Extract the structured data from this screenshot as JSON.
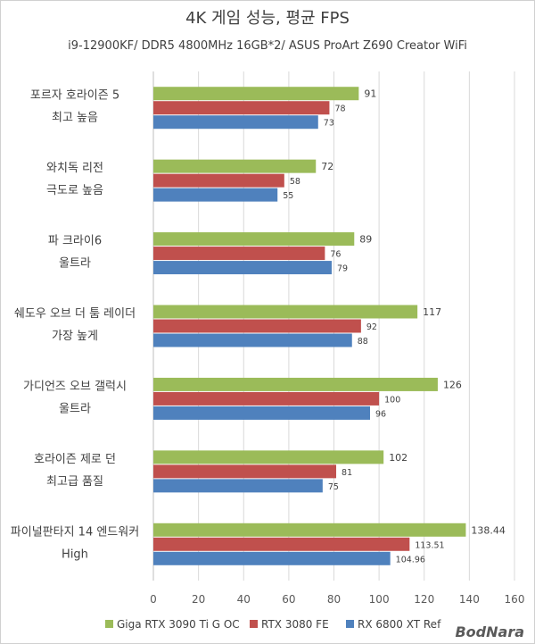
{
  "watermark": "BodNara",
  "chart_data": {
    "type": "bar",
    "orientation": "horizontal",
    "title": "4K 게임 성능,  평균 FPS",
    "subtitle": "i9-12900KF/ DDR5 4800MHz 16GB*2/ ASUS ProArt Z690 Creator WiFi",
    "categories": [
      [
        "포르자 호라이즌 5",
        "최고 높음"
      ],
      [
        "와치독 리전",
        "극도로 높음"
      ],
      [
        "파 크라이6",
        "울트라"
      ],
      [
        "쉐도우 오브 더 툼 레이더",
        "가장 높게"
      ],
      [
        "가디언즈 오브 갤럭시",
        "울트라"
      ],
      [
        "호라이즌 제로 던",
        "최고급 품질"
      ],
      [
        "파이널판타지 14 엔드워커",
        "High"
      ]
    ],
    "series": [
      {
        "name": "Giga RTX 3090 Ti G OC",
        "color": "#9bbb59",
        "values": [
          91,
          72,
          89,
          117,
          126,
          102,
          138.44
        ],
        "labels": [
          "91",
          "72",
          "89",
          "117",
          "126",
          "102",
          "138.44"
        ]
      },
      {
        "name": "RTX 3080 FE",
        "color": "#c0504d",
        "values": [
          78,
          58,
          76,
          92,
          100,
          81,
          113.51
        ],
        "labels": [
          "78",
          "58",
          "76",
          "92",
          "100",
          "81",
          "113.51"
        ]
      },
      {
        "name": "RX 6800 XT Ref",
        "color": "#4f81bd",
        "values": [
          73,
          55,
          79,
          88,
          96,
          75,
          104.96
        ],
        "labels": [
          "73",
          "55",
          "79",
          "88",
          "96",
          "75",
          "104.96"
        ]
      }
    ],
    "xlim": [
      0,
      160
    ],
    "xticks": [
      0,
      20,
      40,
      60,
      80,
      100,
      120,
      140,
      160
    ],
    "grid": true,
    "legend_position": "bottom"
  }
}
